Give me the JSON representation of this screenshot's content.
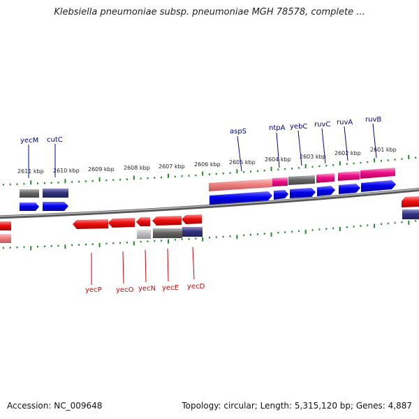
{
  "title": "Klebsiella pneumoniae subsp. pneumoniae MGH 78578, complete ...",
  "footer": {
    "accession": "Accession: NC_009648",
    "topology": "Topology: circular; Length: 5,315,120 bp; Genes: 4,887"
  },
  "colors": {
    "forward_label": "#00008b",
    "reverse_label": "#cc0000",
    "backbone": "#808080",
    "ticks": "#228b22",
    "gene_red": "#ee1111",
    "cds_blue": "#0000ee",
    "gray_bar": "#707070",
    "navy_bar": "#303080",
    "pink_bar": "#ee1188",
    "salmon_bar": "#ee8080"
  },
  "ticks": [
    "2611 kbp",
    "2610 kbp",
    "2609 kbp",
    "2608 kbp",
    "2607 kbp",
    "2606 kbp",
    "2605 kbp",
    "2604 kbp",
    "2603 kbp",
    "2602 kbp",
    "2601 kbp"
  ],
  "forward_genes": [
    "yecM",
    "cutC",
    "aspS",
    "ntpA",
    "yebC",
    "ruvC",
    "ruvA",
    "ruvB"
  ],
  "reverse_genes": [
    "yecP",
    "yecO",
    "yecN",
    "yecE",
    "yecD"
  ]
}
